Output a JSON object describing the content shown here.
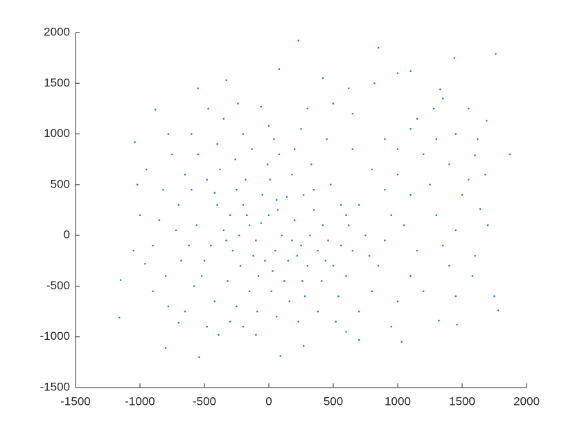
{
  "chart_data": {
    "type": "scatter",
    "color": "#2a7fcf",
    "xlim": [
      -1500,
      2000
    ],
    "xticks": [
      -1500,
      -1000,
      -500,
      0,
      500,
      1000,
      1500,
      2000
    ],
    "ylim": [
      -1500,
      2000
    ],
    "yticks": [
      -1500,
      -1000,
      -500,
      0,
      500,
      1000,
      1500,
      2000
    ],
    "grid": false,
    "x": [
      230,
      850,
      1760,
      1440,
      80,
      -550,
      -330,
      1000,
      1100,
      620,
      1330,
      -880,
      -1040,
      1870,
      1780,
      1750,
      -1150,
      -1160,
      -800,
      -540,
      90,
      1030,
      1460,
      1320,
      -390,
      270,
      700,
      -1020,
      -960,
      1600,
      1680,
      1640,
      1580,
      1450,
      -700,
      -100,
      420,
      1280,
      1690,
      -240,
      -200,
      -150,
      -250,
      -100,
      0,
      50,
      100,
      150,
      200,
      250,
      300,
      -300,
      -350,
      -50,
      10,
      60,
      -120,
      -220,
      -80,
      120,
      220,
      320,
      380,
      420,
      -400,
      -450,
      -280,
      -180,
      -10,
      80,
      180,
      270,
      350,
      460,
      500,
      410,
      280,
      160,
      20,
      -150,
      -320,
      -500,
      -560,
      -600,
      -480,
      -380,
      -260,
      -130,
      40,
      200,
      330,
      480,
      560,
      620,
      650,
      600,
      540,
      380,
      230,
      60,
      -90,
      -250,
      -420,
      -580,
      -680,
      -720,
      -700,
      -650,
      -550,
      -400,
      -200,
      0,
      250,
      450,
      650,
      800,
      900,
      950,
      900,
      850,
      800,
      700,
      520,
      -800,
      -850,
      -820,
      -900,
      700,
      750,
      780,
      1000,
      1100,
      1050,
      1150,
      1200,
      1250,
      1300,
      1350,
      1100,
      1000,
      1200,
      1400,
      1450,
      1500,
      1400,
      1300,
      1100,
      900,
      1000,
      1150,
      1450,
      1550,
      650,
      500,
      300,
      -60,
      -350,
      -600,
      -750,
      -950,
      -1000,
      -1050,
      -900,
      -780,
      -650,
      -300,
      -30,
      70,
      -170,
      140,
      -330,
      30,
      260,
      -230,
      180,
      -60,
      350,
      -420,
      440,
      560,
      600,
      -520,
      -620,
      1600,
      1700,
      1550,
      1620,
      820,
      1350,
      -470,
      -780,
      950,
      600,
      -200,
      -480
    ],
    "values": [
      1920,
      1850,
      1790,
      1750,
      1640,
      1450,
      1530,
      1600,
      1620,
      1450,
      1440,
      1240,
      920,
      800,
      -740,
      -600,
      -440,
      -810,
      -1110,
      -1200,
      -1190,
      -1050,
      -880,
      -840,
      -980,
      -1090,
      -1030,
      500,
      -280,
      790,
      600,
      260,
      -400,
      -600,
      -860,
      -980,
      1550,
      1250,
      1130,
      1300,
      300,
      100,
      450,
      -50,
      200,
      -150,
      0,
      -250,
      150,
      -100,
      -300,
      200,
      50,
      400,
      550,
      350,
      -200,
      -300,
      -400,
      -450,
      -200,
      0,
      -150,
      100,
      300,
      -100,
      -150,
      550,
      700,
      800,
      600,
      400,
      250,
      -50,
      -300,
      -450,
      -600,
      -650,
      -550,
      -550,
      -450,
      -250,
      100,
      450,
      550,
      650,
      750,
      850,
      950,
      850,
      700,
      500,
      300,
      100,
      -150,
      -400,
      -600,
      -750,
      -850,
      -800,
      -750,
      -700,
      -650,
      -500,
      -250,
      50,
      300,
      600,
      800,
      900,
      1000,
      1080,
      1050,
      950,
      850,
      650,
      450,
      200,
      -50,
      -300,
      -550,
      -750,
      -850,
      -400,
      150,
      450,
      -100,
      300,
      0,
      -200,
      600,
      400,
      100,
      -150,
      800,
      500,
      200,
      -100,
      -400,
      -650,
      -550,
      -300,
      50,
      400,
      700,
      950,
      1050,
      950,
      850,
      1150,
      1000,
      1250,
      1200,
      1300,
      1250,
      1270,
      1150,
      1000,
      800,
      650,
      200,
      -150,
      -550,
      -700,
      -750,
      -850,
      -250,
      250,
      200,
      380,
      -50,
      -350,
      -450,
      0,
      -50,
      120,
      450,
      420,
      -250,
      -100,
      200,
      -400,
      -100,
      -200,
      100,
      550,
      950,
      1500,
      1350,
      1250,
      1000,
      -900,
      -950,
      -900,
      -900
    ]
  }
}
